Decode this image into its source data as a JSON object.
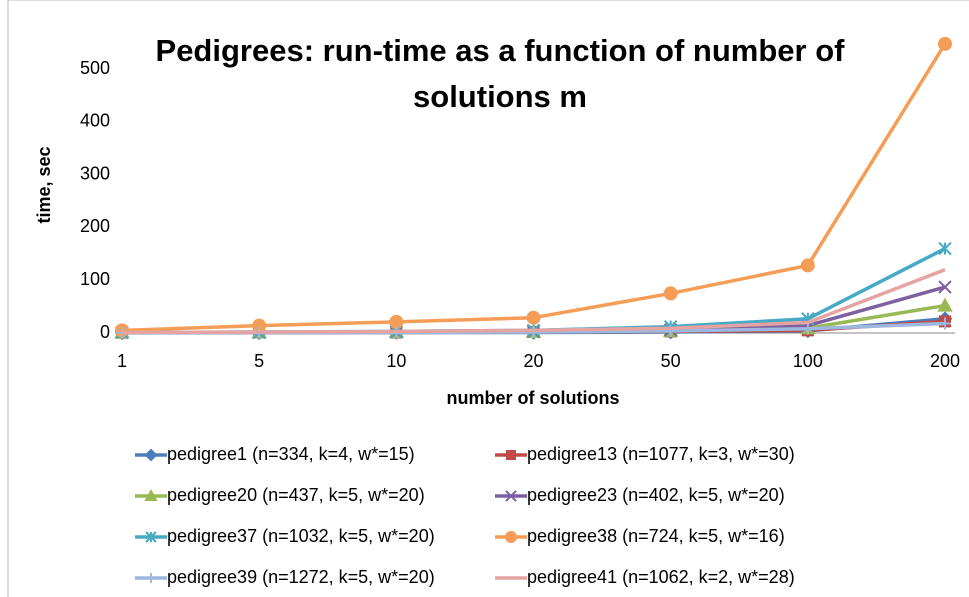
{
  "chart_data": {
    "type": "line",
    "title": "Pedigrees: run-time as a function of number of solutions m",
    "x_label": "number of solutions",
    "y_label": "time, sec",
    "categories": [
      "1",
      "5",
      "10",
      "20",
      "50",
      "100",
      "200"
    ],
    "ylim": [
      0,
      580
    ],
    "yticks": [
      0,
      100,
      200,
      300,
      400,
      500
    ],
    "grid": false,
    "legend": "bottom",
    "series": [
      {
        "name": "pedigree1 (n=334, k=4, w*=15)",
        "color": "#4a7ebb",
        "marker": "diamond",
        "values": [
          0.3,
          0.5,
          1,
          1,
          2,
          4,
          27
        ]
      },
      {
        "name": "pedigree13 (n=1077, k=3, w*=30)",
        "color": "#be4b48",
        "marker": "square",
        "values": [
          0.5,
          1,
          1,
          2,
          3,
          5,
          22
        ]
      },
      {
        "name": "pedigree20 (n=437, k=5, w*=20)",
        "color": "#98b954",
        "marker": "triangle",
        "values": [
          1,
          1,
          2,
          2,
          4,
          9,
          52
        ]
      },
      {
        "name": "pedigree23 (n=402, k=5, w*=20)",
        "color": "#7d60a0",
        "marker": "x",
        "values": [
          1,
          1,
          2,
          3,
          6,
          14,
          87
        ]
      },
      {
        "name": "pedigree37 (n=1032, k=5, w*=20)",
        "color": "#46aac5",
        "marker": "star",
        "values": [
          1,
          2,
          3,
          5,
          12,
          27,
          160
        ]
      },
      {
        "name": "pedigree38 (n=724, k=5, w*=16)",
        "color": "#f59d56",
        "marker": "circle",
        "values": [
          5,
          14,
          21,
          29,
          75,
          128,
          548
        ]
      },
      {
        "name": "pedigree39 (n=1272, k=5, w*=20)",
        "color": "#9cb8e0",
        "marker": "plus",
        "values": [
          0.5,
          1,
          1,
          2,
          4,
          8,
          18
        ]
      },
      {
        "name": "pedigree41 (n=1062, k=2, w*=28)",
        "color": "#e5a3a2",
        "marker": "none",
        "values": [
          1,
          2,
          3,
          5,
          9,
          20,
          120
        ]
      }
    ]
  }
}
